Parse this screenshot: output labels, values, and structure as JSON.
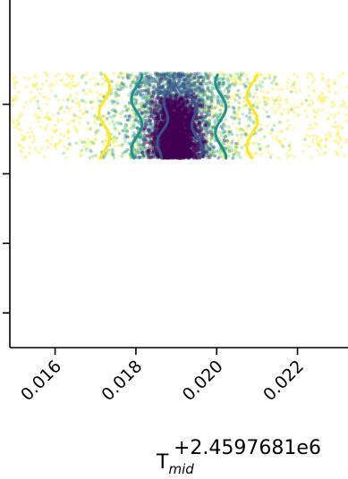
{
  "chart_data": {
    "type": "scatter",
    "description_of_marks": "dense point cloud with contour lines",
    "x_ticks": [
      "0.016",
      "0.018",
      "0.020",
      "0.022"
    ],
    "x_tick_values": [
      0.016,
      0.018,
      0.02,
      0.022
    ],
    "xlim": [
      0.01488,
      0.02325
    ],
    "ylim": [
      0.0,
      1.0
    ],
    "y_tick_values": [
      0.1,
      0.3,
      0.5,
      0.7
    ],
    "xlabel_base": "T",
    "xlabel_sub": "mid",
    "offset_text": "+2.4597681e6",
    "cloud": {
      "center_x": 0.01899,
      "y_range": [
        0.545,
        0.79
      ],
      "colors": {
        "outer": "#fde725",
        "mid": "#5ec962",
        "inner": "#21918c",
        "core": "#440154",
        "deep": "#3b528b"
      }
    },
    "contours": [
      {
        "level": "outer",
        "color": "#fde725",
        "x_left": 0.01722,
        "x_right": 0.02088
      },
      {
        "level": "middle",
        "color": "#21918c",
        "x_left": 0.01802,
        "x_right": 0.0201
      },
      {
        "level": "inner",
        "color": "#3b528b",
        "x_left": 0.01855,
        "x_right": 0.0196
      }
    ]
  }
}
